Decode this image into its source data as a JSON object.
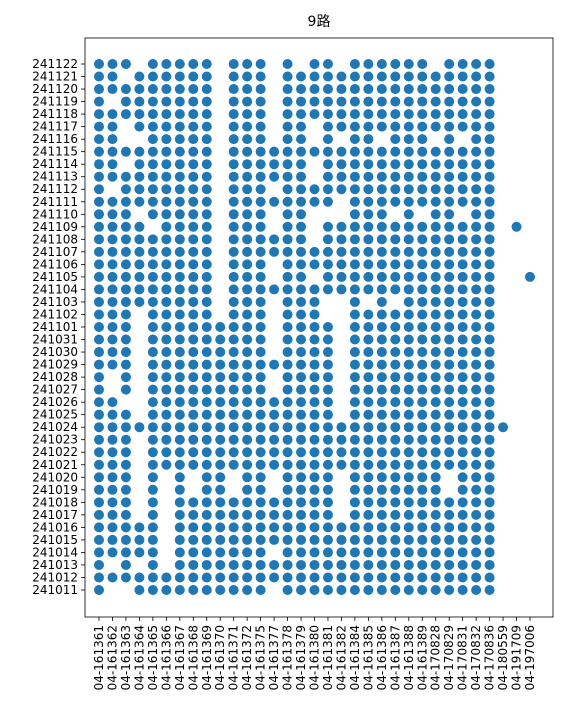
{
  "chart_data": {
    "type": "scatter",
    "title": "9路",
    "color": "#1f77b4",
    "categories": [
      "04-161361",
      "04-161362",
      "04-161363",
      "04-161364",
      "04-161365",
      "04-161366",
      "04-161367",
      "04-161368",
      "04-161369",
      "04-161370",
      "04-161371",
      "04-161372",
      "04-161375",
      "04-161377",
      "04-161378",
      "04-161379",
      "04-161380",
      "04-161381",
      "04-161382",
      "04-161384",
      "04-161385",
      "04-161386",
      "04-161387",
      "04-161388",
      "04-161389",
      "04-170828",
      "04-170829",
      "04-170831",
      "04-170832",
      "04-170836",
      "04-180559",
      "04-191709",
      "04-197006"
    ],
    "y_categories": [
      "241122",
      "241121",
      "241120",
      "241119",
      "241118",
      "241117",
      "241116",
      "241115",
      "241114",
      "241113",
      "241112",
      "241111",
      "241110",
      "241109",
      "241108",
      "241107",
      "241106",
      "241105",
      "241104",
      "241103",
      "241102",
      "241101",
      "241031",
      "241030",
      "241029",
      "241028",
      "241027",
      "241026",
      "241025",
      "241024",
      "241023",
      "241022",
      "241021",
      "241020",
      "241019",
      "241018",
      "241017",
      "241016",
      "241015",
      "241014",
      "241013",
      "241012",
      "241011"
    ],
    "values": [
      [
        1,
        1,
        1,
        0,
        1,
        1,
        1,
        1,
        1,
        0,
        1,
        1,
        1,
        0,
        1,
        0,
        1,
        1,
        0,
        1,
        1,
        1,
        1,
        1,
        1,
        0,
        1,
        1,
        1,
        1,
        0,
        0,
        0
      ],
      [
        1,
        1,
        0,
        1,
        1,
        1,
        1,
        1,
        1,
        0,
        1,
        1,
        1,
        0,
        1,
        1,
        1,
        1,
        1,
        1,
        1,
        1,
        1,
        1,
        1,
        1,
        1,
        1,
        1,
        1,
        0,
        0,
        0
      ],
      [
        1,
        1,
        1,
        1,
        1,
        1,
        1,
        1,
        1,
        0,
        1,
        1,
        1,
        0,
        1,
        1,
        1,
        1,
        1,
        1,
        1,
        1,
        1,
        1,
        1,
        1,
        1,
        1,
        1,
        1,
        0,
        0,
        0
      ],
      [
        1,
        0,
        1,
        1,
        1,
        1,
        1,
        1,
        1,
        0,
        1,
        1,
        1,
        0,
        1,
        1,
        1,
        1,
        1,
        1,
        1,
        1,
        1,
        1,
        1,
        1,
        1,
        1,
        1,
        1,
        0,
        0,
        0
      ],
      [
        1,
        1,
        1,
        1,
        1,
        1,
        1,
        1,
        1,
        0,
        1,
        1,
        1,
        0,
        1,
        1,
        1,
        1,
        1,
        1,
        1,
        1,
        1,
        1,
        1,
        1,
        1,
        1,
        1,
        1,
        0,
        0,
        0
      ],
      [
        1,
        1,
        0,
        1,
        1,
        1,
        1,
        1,
        1,
        0,
        1,
        1,
        1,
        0,
        1,
        1,
        0,
        1,
        1,
        1,
        1,
        1,
        1,
        1,
        1,
        1,
        1,
        1,
        1,
        1,
        0,
        0,
        0
      ],
      [
        1,
        1,
        0,
        0,
        1,
        1,
        1,
        1,
        1,
        0,
        1,
        1,
        1,
        0,
        1,
        1,
        0,
        1,
        0,
        1,
        1,
        0,
        1,
        1,
        1,
        0,
        1,
        0,
        1,
        1,
        0,
        0,
        0
      ],
      [
        1,
        1,
        1,
        1,
        1,
        1,
        1,
        1,
        1,
        0,
        1,
        1,
        1,
        1,
        1,
        1,
        1,
        1,
        1,
        1,
        1,
        1,
        1,
        1,
        1,
        1,
        1,
        1,
        1,
        1,
        0,
        0,
        0
      ],
      [
        1,
        1,
        0,
        1,
        1,
        1,
        1,
        1,
        1,
        0,
        1,
        1,
        1,
        1,
        1,
        1,
        0,
        1,
        1,
        1,
        1,
        1,
        1,
        1,
        1,
        1,
        1,
        1,
        1,
        1,
        0,
        0,
        0
      ],
      [
        1,
        1,
        1,
        1,
        1,
        1,
        1,
        1,
        1,
        0,
        1,
        1,
        1,
        1,
        1,
        1,
        0,
        1,
        1,
        1,
        1,
        1,
        1,
        1,
        1,
        1,
        1,
        1,
        1,
        1,
        0,
        0,
        0
      ],
      [
        1,
        0,
        1,
        1,
        1,
        1,
        1,
        1,
        1,
        0,
        1,
        1,
        1,
        0,
        1,
        1,
        1,
        1,
        1,
        1,
        1,
        1,
        1,
        1,
        1,
        1,
        1,
        1,
        1,
        1,
        0,
        0,
        0
      ],
      [
        1,
        1,
        1,
        1,
        1,
        1,
        1,
        1,
        1,
        0,
        1,
        1,
        1,
        1,
        1,
        1,
        1,
        1,
        0,
        1,
        1,
        1,
        1,
        1,
        1,
        1,
        1,
        1,
        1,
        1,
        0,
        0,
        0
      ],
      [
        1,
        1,
        1,
        0,
        1,
        1,
        1,
        1,
        1,
        0,
        1,
        1,
        1,
        0,
        1,
        1,
        0,
        0,
        0,
        1,
        1,
        1,
        0,
        1,
        0,
        1,
        1,
        0,
        1,
        1,
        0,
        0,
        0
      ],
      [
        1,
        1,
        1,
        1,
        0,
        1,
        1,
        1,
        1,
        0,
        1,
        1,
        1,
        0,
        1,
        1,
        0,
        1,
        1,
        1,
        1,
        1,
        1,
        1,
        1,
        1,
        1,
        1,
        1,
        1,
        0,
        1,
        0
      ],
      [
        1,
        1,
        1,
        1,
        1,
        1,
        1,
        1,
        1,
        0,
        1,
        1,
        1,
        1,
        1,
        1,
        0,
        1,
        1,
        1,
        1,
        1,
        1,
        1,
        1,
        1,
        1,
        1,
        1,
        1,
        0,
        0,
        0
      ],
      [
        1,
        1,
        1,
        1,
        1,
        1,
        1,
        1,
        1,
        0,
        1,
        1,
        1,
        1,
        1,
        1,
        1,
        1,
        1,
        1,
        1,
        1,
        1,
        1,
        1,
        1,
        1,
        1,
        1,
        1,
        0,
        0,
        0
      ],
      [
        1,
        1,
        1,
        1,
        1,
        1,
        1,
        1,
        1,
        0,
        1,
        1,
        1,
        0,
        1,
        1,
        1,
        1,
        1,
        1,
        1,
        1,
        1,
        1,
        1,
        1,
        1,
        1,
        1,
        1,
        0,
        0,
        0
      ],
      [
        1,
        1,
        1,
        1,
        1,
        1,
        1,
        1,
        1,
        0,
        1,
        1,
        1,
        0,
        1,
        1,
        0,
        1,
        1,
        1,
        1,
        1,
        1,
        1,
        1,
        1,
        1,
        1,
        1,
        1,
        0,
        0,
        1
      ],
      [
        1,
        1,
        1,
        1,
        1,
        1,
        1,
        1,
        1,
        0,
        1,
        1,
        1,
        1,
        1,
        1,
        1,
        1,
        1,
        1,
        1,
        1,
        1,
        1,
        1,
        1,
        1,
        1,
        1,
        1,
        0,
        0,
        0
      ],
      [
        1,
        1,
        1,
        1,
        1,
        1,
        1,
        1,
        1,
        0,
        1,
        1,
        1,
        0,
        1,
        1,
        1,
        0,
        0,
        1,
        0,
        1,
        0,
        1,
        1,
        1,
        1,
        1,
        1,
        1,
        0,
        0,
        0
      ],
      [
        1,
        1,
        1,
        0,
        1,
        1,
        1,
        1,
        1,
        0,
        1,
        1,
        1,
        0,
        1,
        1,
        1,
        0,
        0,
        1,
        1,
        1,
        1,
        1,
        1,
        1,
        1,
        1,
        1,
        1,
        0,
        0,
        0
      ],
      [
        1,
        1,
        1,
        0,
        1,
        1,
        1,
        1,
        1,
        1,
        1,
        1,
        1,
        0,
        1,
        1,
        1,
        1,
        0,
        1,
        1,
        1,
        1,
        1,
        1,
        1,
        1,
        1,
        1,
        1,
        0,
        0,
        0
      ],
      [
        1,
        1,
        1,
        0,
        1,
        1,
        1,
        1,
        1,
        1,
        1,
        1,
        1,
        0,
        1,
        1,
        1,
        1,
        0,
        1,
        1,
        1,
        1,
        1,
        1,
        1,
        1,
        1,
        1,
        1,
        0,
        0,
        0
      ],
      [
        1,
        1,
        1,
        0,
        1,
        1,
        1,
        1,
        1,
        1,
        1,
        1,
        1,
        0,
        1,
        1,
        1,
        1,
        0,
        1,
        1,
        1,
        1,
        1,
        1,
        1,
        1,
        1,
        1,
        1,
        0,
        0,
        0
      ],
      [
        1,
        1,
        1,
        0,
        1,
        1,
        1,
        1,
        1,
        1,
        1,
        1,
        1,
        1,
        1,
        1,
        1,
        1,
        0,
        1,
        1,
        1,
        1,
        1,
        1,
        1,
        1,
        1,
        1,
        1,
        0,
        0,
        0
      ],
      [
        1,
        0,
        1,
        0,
        1,
        1,
        1,
        1,
        1,
        1,
        1,
        1,
        1,
        0,
        1,
        1,
        1,
        1,
        0,
        1,
        1,
        1,
        1,
        1,
        1,
        1,
        1,
        1,
        1,
        1,
        0,
        0,
        0
      ],
      [
        1,
        0,
        1,
        0,
        1,
        1,
        1,
        1,
        1,
        1,
        1,
        1,
        1,
        0,
        1,
        1,
        1,
        1,
        0,
        1,
        1,
        1,
        1,
        1,
        1,
        1,
        1,
        1,
        1,
        1,
        0,
        0,
        0
      ],
      [
        1,
        1,
        0,
        0,
        1,
        1,
        1,
        1,
        1,
        1,
        1,
        1,
        1,
        1,
        1,
        1,
        1,
        1,
        0,
        1,
        1,
        1,
        1,
        1,
        1,
        1,
        1,
        1,
        1,
        1,
        0,
        0,
        0
      ],
      [
        1,
        1,
        1,
        0,
        1,
        1,
        1,
        1,
        1,
        1,
        1,
        1,
        1,
        1,
        1,
        1,
        1,
        1,
        0,
        1,
        1,
        1,
        1,
        1,
        1,
        1,
        1,
        1,
        1,
        1,
        0,
        0,
        0
      ],
      [
        1,
        1,
        1,
        1,
        1,
        1,
        1,
        1,
        1,
        1,
        1,
        1,
        1,
        1,
        1,
        1,
        1,
        1,
        1,
        1,
        1,
        1,
        1,
        1,
        1,
        1,
        1,
        1,
        1,
        1,
        1,
        0,
        0
      ],
      [
        1,
        1,
        1,
        0,
        1,
        1,
        1,
        1,
        1,
        1,
        1,
        1,
        1,
        1,
        1,
        1,
        1,
        1,
        1,
        1,
        1,
        1,
        1,
        1,
        1,
        1,
        1,
        1,
        1,
        1,
        0,
        0,
        0
      ],
      [
        1,
        1,
        1,
        0,
        1,
        1,
        1,
        1,
        1,
        1,
        1,
        1,
        1,
        1,
        1,
        1,
        1,
        1,
        1,
        1,
        1,
        1,
        1,
        1,
        1,
        1,
        1,
        1,
        1,
        1,
        0,
        0,
        0
      ],
      [
        1,
        1,
        1,
        0,
        1,
        1,
        1,
        1,
        1,
        1,
        1,
        1,
        1,
        1,
        1,
        1,
        1,
        1,
        1,
        1,
        1,
        1,
        1,
        1,
        1,
        1,
        1,
        1,
        1,
        1,
        0,
        0,
        0
      ],
      [
        1,
        1,
        1,
        0,
        1,
        0,
        1,
        0,
        1,
        1,
        0,
        1,
        1,
        0,
        1,
        1,
        1,
        1,
        0,
        1,
        1,
        1,
        1,
        1,
        1,
        1,
        0,
        1,
        1,
        1,
        0,
        0,
        0
      ],
      [
        1,
        1,
        1,
        0,
        1,
        0,
        1,
        0,
        1,
        1,
        0,
        1,
        1,
        0,
        1,
        1,
        1,
        1,
        0,
        1,
        1,
        1,
        1,
        1,
        1,
        1,
        0,
        1,
        1,
        1,
        0,
        0,
        0
      ],
      [
        1,
        1,
        1,
        0,
        1,
        0,
        1,
        1,
        1,
        1,
        1,
        1,
        1,
        1,
        1,
        1,
        1,
        1,
        0,
        1,
        1,
        1,
        1,
        1,
        1,
        1,
        1,
        1,
        1,
        1,
        0,
        0,
        0
      ],
      [
        1,
        1,
        1,
        0,
        1,
        0,
        1,
        1,
        1,
        1,
        1,
        1,
        1,
        1,
        1,
        1,
        1,
        1,
        0,
        1,
        1,
        1,
        1,
        1,
        1,
        1,
        1,
        1,
        1,
        1,
        0,
        0,
        0
      ],
      [
        1,
        1,
        1,
        1,
        1,
        0,
        1,
        1,
        1,
        1,
        1,
        1,
        1,
        1,
        1,
        1,
        1,
        1,
        1,
        1,
        1,
        1,
        1,
        1,
        1,
        1,
        1,
        1,
        1,
        1,
        0,
        0,
        0
      ],
      [
        1,
        1,
        1,
        1,
        1,
        0,
        1,
        1,
        1,
        1,
        1,
        1,
        1,
        1,
        1,
        1,
        1,
        1,
        1,
        1,
        1,
        1,
        1,
        1,
        1,
        1,
        1,
        1,
        1,
        1,
        0,
        0,
        0
      ],
      [
        1,
        1,
        1,
        1,
        1,
        0,
        1,
        1,
        1,
        1,
        1,
        1,
        1,
        0,
        1,
        1,
        1,
        1,
        1,
        1,
        1,
        1,
        1,
        1,
        1,
        1,
        1,
        1,
        1,
        1,
        0,
        0,
        0
      ],
      [
        1,
        0,
        1,
        0,
        1,
        0,
        1,
        1,
        1,
        1,
        1,
        1,
        1,
        1,
        1,
        1,
        1,
        1,
        1,
        1,
        1,
        1,
        1,
        1,
        1,
        1,
        1,
        1,
        1,
        1,
        0,
        0,
        0
      ],
      [
        1,
        1,
        1,
        1,
        1,
        1,
        1,
        1,
        1,
        1,
        1,
        1,
        1,
        1,
        1,
        1,
        1,
        1,
        1,
        1,
        1,
        1,
        1,
        1,
        1,
        1,
        1,
        1,
        1,
        1,
        0,
        0,
        0
      ],
      [
        1,
        0,
        0,
        1,
        1,
        1,
        1,
        1,
        1,
        1,
        1,
        1,
        1,
        0,
        1,
        1,
        1,
        1,
        1,
        1,
        1,
        1,
        1,
        1,
        1,
        1,
        1,
        1,
        1,
        1,
        0,
        0,
        0
      ]
    ]
  }
}
